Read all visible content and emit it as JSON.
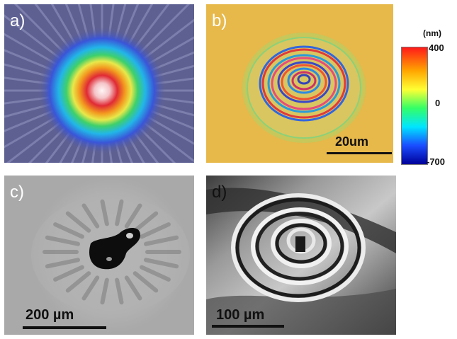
{
  "panels": [
    {
      "id": "a",
      "label": "a)"
    },
    {
      "id": "b",
      "label": "b)",
      "scale_bar": "20um"
    },
    {
      "id": "c",
      "label": "c)",
      "scale_bar": "200 µm"
    },
    {
      "id": "d",
      "label": "d)",
      "scale_bar": "100 µm"
    }
  ],
  "colorbar": {
    "unit": "(nm)",
    "ticks": [
      "400",
      "0",
      "-700"
    ],
    "colors": [
      "#ff1a1a",
      "#ffa500",
      "#ffff33",
      "#33ff66",
      "#00e5ff",
      "#1a4dff",
      "#000099"
    ]
  }
}
